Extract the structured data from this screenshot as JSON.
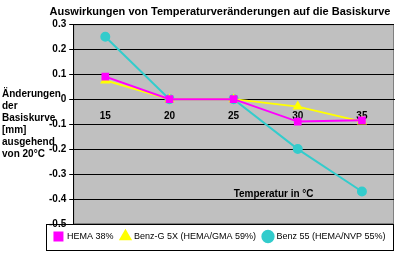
{
  "chart_data": {
    "type": "line",
    "title": "Auswirkungen von Temperaturveränderungen auf die Basiskurve",
    "x_label": "Temperatur in °C",
    "y_label": "Änderungen der Basiskurve [mm] ausgehend von 20°C",
    "categories": [
      "15",
      "20",
      "25",
      "30",
      "35"
    ],
    "series": [
      {
        "name": "HEMA 38%",
        "color": "#ff00ff",
        "marker": "square",
        "values": [
          0.09,
          0,
          0,
          -0.09,
          -0.085
        ]
      },
      {
        "name": "Benz-G 5X (HEMA/GMA 59%)",
        "color": "#ffff00",
        "marker": "triangle",
        "values": [
          0.075,
          0,
          0,
          -0.03,
          -0.09
        ]
      },
      {
        "name": "Benz 55 (HEMA/NVP 55%)",
        "color": "#33cccc",
        "marker": "circle",
        "values": [
          0.25,
          0,
          0,
          -0.2,
          -0.37
        ]
      }
    ],
    "ylim": [
      -0.5,
      0.3
    ],
    "yticks": [
      -0.5,
      -0.4,
      -0.3,
      -0.2,
      -0.1,
      0,
      0.1,
      0.2,
      0.3
    ],
    "grid": true,
    "legend": "bottom"
  }
}
